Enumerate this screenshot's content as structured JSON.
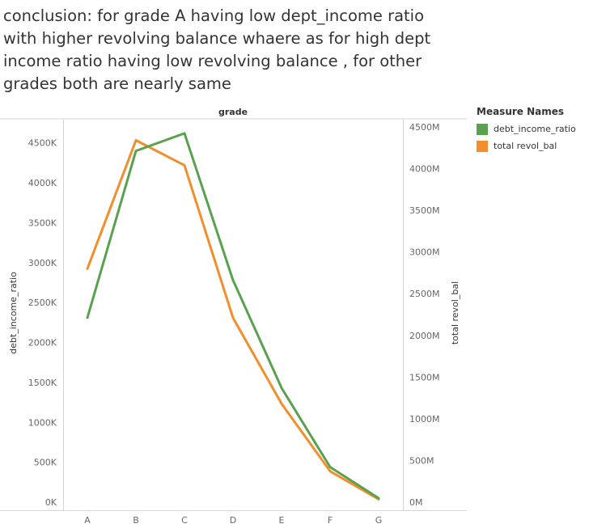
{
  "title": "conclusion: for grade A having low dept_income ratio with higher revolving balance whaere as for high dept income ratio having low revolving balance , for other grades both are nearly same",
  "legend": {
    "title": "Measure Names",
    "items": [
      {
        "label": "debt_income_ratio",
        "color": "#59a14f"
      },
      {
        "label": "total revol_bal",
        "color": "#f28e2b"
      }
    ]
  },
  "chart_data": {
    "type": "line",
    "header": "grade",
    "categories": [
      "A",
      "B",
      "C",
      "D",
      "E",
      "F",
      "G"
    ],
    "series": [
      {
        "name": "debt_income_ratio",
        "axis": "left",
        "color": "#59a14f",
        "values": [
          2310000,
          4400000,
          4620000,
          2780000,
          1430000,
          440000,
          50000
        ]
      },
      {
        "name": "total revol_bal",
        "axis": "right",
        "color": "#f28e2b",
        "values": [
          2800000000,
          4340000000,
          4040000000,
          2210000000,
          1180000000,
          370000000,
          35000000
        ]
      }
    ],
    "left_axis": {
      "label": "debt_income_ratio",
      "ticks": [
        0,
        500000,
        1000000,
        1500000,
        2000000,
        2500000,
        3000000,
        3500000,
        4000000,
        4500000
      ],
      "tick_labels": [
        "0K",
        "500K",
        "1000K",
        "1500K",
        "2000K",
        "2500K",
        "3000K",
        "3500K",
        "4000K",
        "4500K"
      ],
      "ylim": [
        0,
        4700000
      ]
    },
    "right_axis": {
      "label": "total revol_bal",
      "ticks": [
        0,
        500000000,
        1000000000,
        1500000000,
        2000000000,
        2500000000,
        3000000000,
        3500000000,
        4000000000,
        4500000000
      ],
      "tick_labels": [
        "0M",
        "500M",
        "1000M",
        "1500M",
        "2000M",
        "2500M",
        "3000M",
        "3500M",
        "4000M",
        "4500M"
      ],
      "ylim": [
        0,
        4500000000
      ]
    },
    "grid": false
  }
}
